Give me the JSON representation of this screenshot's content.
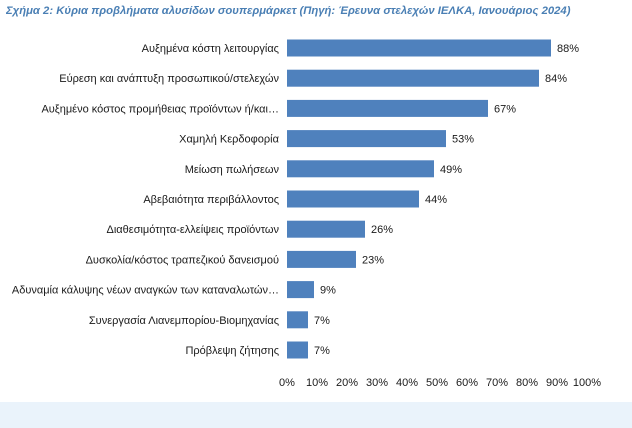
{
  "caption": "Σχήμα 2: Κύρια προβλήματα αλυσίδων σουπερμάρκετ (Πηγή: Έρευνα στελεχών ΙΕΛΚΑ, Ιανουάριος 2024)",
  "colors": {
    "bar": "#4f81bd",
    "caption": "#4a7fb4",
    "band": "#eaf3fb"
  },
  "chart_data": {
    "type": "bar",
    "orientation": "horizontal",
    "title": "Σχήμα 2: Κύρια προβλήματα αλυσίδων σουπερμάρκετ (Πηγή: Έρευνα στελεχών ΙΕΛΚΑ, Ιανουάριος 2024)",
    "categories": [
      "Αυξημένα κόστη λειτουργίας",
      "Εύρεση και ανάπτυξη προσωπικού/στελεχών",
      "Αυξημένο κόστος προμήθειας προϊόντων ή/και…",
      "Χαμηλή Κερδοφορία",
      "Μείωση πωλήσεων",
      "Αβεβαιότητα περιβάλλοντος",
      "Διαθεσιμότητα-ελλείψεις προϊόντων",
      "Δυσκολία/κόστος τραπεζικού δανεισμού",
      "Αδυναμία κάλυψης νέων αναγκών των καταναλωτών…",
      "Συνεργασία Λιανεμπορίου-Βιομηχανίας",
      "Πρόβλεψη ζήτησης"
    ],
    "values": [
      88,
      84,
      67,
      53,
      49,
      44,
      26,
      23,
      9,
      7,
      7
    ],
    "value_labels": [
      "88%",
      "84%",
      "67%",
      "53%",
      "49%",
      "44%",
      "26%",
      "23%",
      "9%",
      "7%",
      "7%"
    ],
    "xlim": [
      0,
      100
    ],
    "x_ticks": [
      "0%",
      "10%",
      "20%",
      "30%",
      "40%",
      "50%",
      "60%",
      "70%",
      "80%",
      "90%",
      "100%"
    ],
    "grid": false,
    "legend": "none"
  }
}
